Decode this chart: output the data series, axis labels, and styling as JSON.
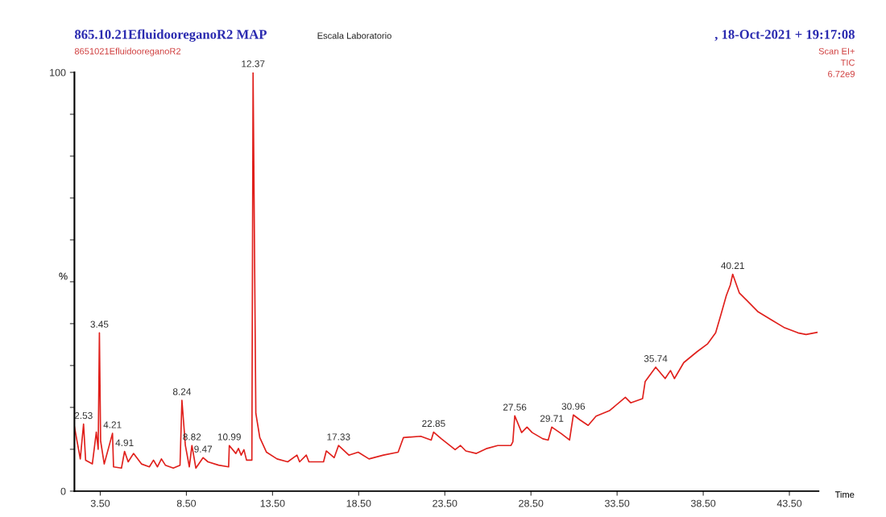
{
  "chart_data": {
    "type": "line",
    "title": "865.10.21EfluidooreganoR2 MAP",
    "subtitle": "8651021EfluidooreganoR2",
    "xlabel": "Time",
    "ylabel": "%",
    "annotations": [
      "Escala Laboratorio",
      ", 18-Oct-2021 + 19:17:08",
      "Scan EI+",
      "TIC",
      "6.72e9",
      {
        "text": "2.53",
        "x": 2.53,
        "y": 16.0
      },
      {
        "text": "3.45",
        "x": 3.45,
        "y": 37.8
      },
      {
        "text": "4.21",
        "x": 4.21,
        "y": 13.8
      },
      {
        "text": "4.91",
        "x": 4.91,
        "y": 9.5
      },
      {
        "text": "8.24",
        "x": 8.24,
        "y": 21.7
      },
      {
        "text": "8.82",
        "x": 8.82,
        "y": 10.9
      },
      {
        "text": "9.47",
        "x": 9.47,
        "y": 8.0
      },
      {
        "text": "10.99",
        "x": 10.99,
        "y": 10.9
      },
      {
        "text": "12.37",
        "x": 12.37,
        "y": 100
      },
      {
        "text": "17.33",
        "x": 17.33,
        "y": 10.9
      },
      {
        "text": "22.85",
        "x": 22.85,
        "y": 14.1
      },
      {
        "text": "27.56",
        "x": 27.56,
        "y": 18.0
      },
      {
        "text": "29.71",
        "x": 29.71,
        "y": 15.3
      },
      {
        "text": "30.96",
        "x": 30.96,
        "y": 18.2
      },
      {
        "text": "35.74",
        "x": 35.74,
        "y": 29.6
      },
      {
        "text": "40.21",
        "x": 40.21,
        "y": 51.8
      }
    ],
    "x": [
      2.0,
      2.34,
      2.53,
      2.65,
      3.04,
      3.27,
      3.38,
      3.45,
      3.52,
      3.73,
      4.21,
      4.27,
      4.73,
      4.91,
      5.12,
      5.43,
      5.89,
      6.35,
      6.59,
      6.82,
      7.05,
      7.28,
      7.74,
      8.13,
      8.24,
      8.44,
      8.67,
      8.82,
      9.05,
      9.47,
      9.75,
      10.37,
      10.95,
      10.99,
      11.37,
      11.52,
      11.68,
      11.84,
      11.99,
      12.3,
      12.37,
      12.53,
      12.76,
      13.15,
      13.76,
      14.38,
      14.92,
      15.07,
      15.46,
      15.61,
      16.46,
      16.62,
      17.08,
      17.33,
      17.93,
      18.47,
      19.1,
      19.94,
      20.79,
      21.1,
      22.1,
      22.71,
      22.85,
      23.3,
      24.1,
      24.41,
      24.72,
      25.33,
      25.95,
      26.57,
      27.34,
      27.45,
      27.56,
      27.96,
      28.27,
      28.57,
      29.19,
      29.5,
      29.71,
      30.27,
      30.74,
      30.96,
      31.35,
      31.82,
      32.28,
      33.05,
      33.98,
      34.29,
      34.98,
      35.13,
      35.74,
      36.29,
      36.6,
      36.83,
      37.37,
      38.14,
      38.76,
      39.22,
      39.53,
      39.84,
      40.07,
      40.21,
      40.6,
      41.07,
      41.69,
      42.46,
      43.23,
      44.0,
      44.47,
      45.1
    ],
    "series": [
      {
        "color": "#e0201c",
        "values": [
          15.4,
          7.7,
          16.0,
          7.4,
          6.5,
          14.1,
          10.0,
          37.8,
          12.0,
          6.5,
          13.8,
          5.8,
          5.5,
          9.5,
          7.0,
          9.0,
          6.5,
          5.8,
          7.4,
          5.8,
          7.7,
          6.2,
          5.5,
          6.2,
          21.7,
          10.9,
          5.8,
          10.9,
          5.5,
          8.0,
          7.0,
          6.2,
          5.8,
          10.9,
          9.0,
          10.2,
          8.6,
          9.9,
          7.4,
          7.4,
          100,
          18.6,
          12.8,
          9.3,
          7.7,
          7.0,
          8.6,
          7.0,
          8.6,
          7.0,
          7.0,
          9.6,
          8.0,
          10.9,
          8.6,
          9.3,
          7.7,
          8.6,
          9.3,
          12.8,
          13.1,
          12.2,
          14.1,
          12.5,
          9.9,
          10.9,
          9.6,
          9.0,
          10.2,
          10.9,
          10.9,
          11.8,
          18.0,
          14.0,
          15.3,
          14.0,
          12.5,
          12.2,
          15.3,
          13.7,
          12.2,
          18.2,
          17.0,
          15.7,
          17.9,
          19.2,
          22.4,
          21.1,
          22.1,
          26.2,
          29.6,
          26.9,
          28.8,
          26.9,
          30.7,
          33.3,
          35.2,
          37.8,
          42.2,
          46.7,
          49.2,
          51.8,
          47.3,
          45.4,
          42.8,
          40.9,
          39.0,
          37.8,
          37.4,
          37.9
        ]
      }
    ],
    "xlim": [
      2.0,
      45.2
    ],
    "xticks": [
      {
        "value": 3.5,
        "label": "3.50"
      },
      {
        "value": 8.5,
        "label": "8.50"
      },
      {
        "value": 13.5,
        "label": "13.50"
      },
      {
        "value": 18.5,
        "label": "18.50"
      },
      {
        "value": 23.5,
        "label": "23.50"
      },
      {
        "value": 28.5,
        "label": "28.50"
      },
      {
        "value": 33.5,
        "label": "33.50"
      },
      {
        "value": 38.5,
        "label": "38.50"
      },
      {
        "value": 43.5,
        "label": "43.50"
      }
    ],
    "ylim": [
      0,
      100
    ],
    "yticks": [
      0,
      {
        "value": 10,
        "label": null
      },
      {
        "value": 20,
        "label": null
      },
      {
        "value": 30,
        "label": null
      },
      {
        "value": 40,
        "label": null
      },
      {
        "value": 50,
        "label": null
      },
      {
        "value": 60,
        "label": null
      },
      {
        "value": 70,
        "label": null
      },
      {
        "value": 80,
        "label": null
      },
      {
        "value": 90,
        "label": null
      },
      100
    ],
    "grid": false,
    "legend": false,
    "marker": "none",
    "line_style": "solid"
  }
}
